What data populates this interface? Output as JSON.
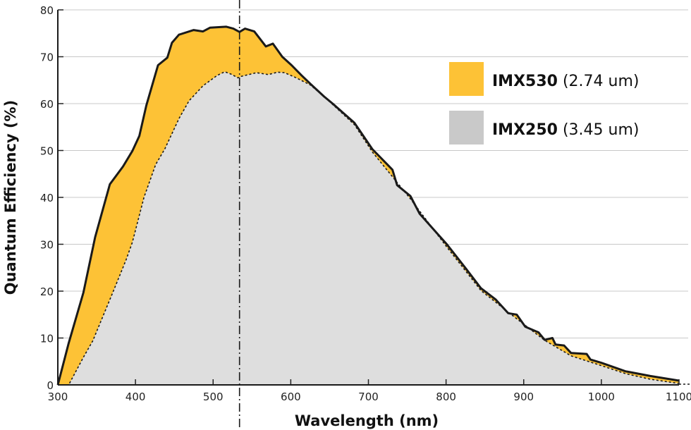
{
  "chart_data": {
    "type": "area",
    "title": "",
    "xlabel": "Wavelength (nm)",
    "ylabel": "Quantum Efficiency (%)",
    "xlim": [
      300,
      1100
    ],
    "ylim": [
      0,
      80
    ],
    "xticks": [
      "300",
      "400",
      "500",
      "600",
      "700",
      "800",
      "900",
      "1000",
      "1100"
    ],
    "yticks": [
      "0",
      "10",
      "20",
      "30",
      "40",
      "50",
      "60",
      "70",
      "80"
    ],
    "grid": "horizontal",
    "legend_position": "top-right",
    "reference_line_x": 534,
    "series": [
      {
        "name": "IMX530",
        "legend_detail": "(2.74 um)",
        "color": "#FDC236",
        "line": "solid",
        "x": [
          300,
          314,
          333,
          348,
          367,
          384,
          396,
          405,
          414,
          429,
          441,
          447,
          456,
          475,
          487,
          496,
          517,
          526,
          534,
          541,
          553,
          568,
          577,
          589,
          601,
          614,
          626,
          643,
          654,
          682,
          705,
          731,
          737,
          754,
          766,
          788,
          801,
          826,
          845,
          864,
          880,
          891,
          902,
          919,
          927,
          937,
          941,
          952,
          961,
          981,
          986,
          1000,
          1031,
          1063,
          1100
        ],
        "y": [
          0,
          8.9,
          19.7,
          31.5,
          42.8,
          46.6,
          49.9,
          53.1,
          59.6,
          68.2,
          69.8,
          73,
          74.7,
          75.7,
          75.4,
          76.2,
          76.4,
          76,
          75.3,
          76,
          75.4,
          72.2,
          72.8,
          70,
          68.2,
          66,
          64.1,
          61.5,
          60,
          55.9,
          50.3,
          45.9,
          42.6,
          40.3,
          36.5,
          32.4,
          30,
          24.7,
          20.6,
          18.2,
          15.3,
          15,
          12.4,
          11.2,
          9.6,
          10,
          8.6,
          8.4,
          6.8,
          6.6,
          5.4,
          4.7,
          2.9,
          1.9,
          0.9
        ]
      },
      {
        "name": "IMX250",
        "legend_detail": "(3.45 um)",
        "color": "#DEDEDE",
        "line": "dotted",
        "x": [
          300,
          314,
          333,
          345,
          372,
          388,
          396,
          411,
          426,
          438,
          456,
          469,
          487,
          505,
          515,
          523,
          532,
          536,
          556,
          571,
          583,
          592,
          607,
          625,
          643,
          682,
          705,
          754,
          801,
          845,
          891,
          927,
          961,
          1000,
          1031,
          1063,
          1100
        ],
        "y": [
          0,
          0,
          5.9,
          9.4,
          20.2,
          26.7,
          30.4,
          40,
          47,
          50.4,
          56.8,
          60.6,
          63.8,
          66,
          66.8,
          66.3,
          65.5,
          65.8,
          66.6,
          66.2,
          66.7,
          66.6,
          65.5,
          64,
          61.5,
          55.5,
          49.7,
          39.7,
          29.4,
          20.1,
          14.1,
          9.5,
          6.2,
          4.1,
          2.4,
          1.2,
          0.3
        ]
      }
    ]
  }
}
